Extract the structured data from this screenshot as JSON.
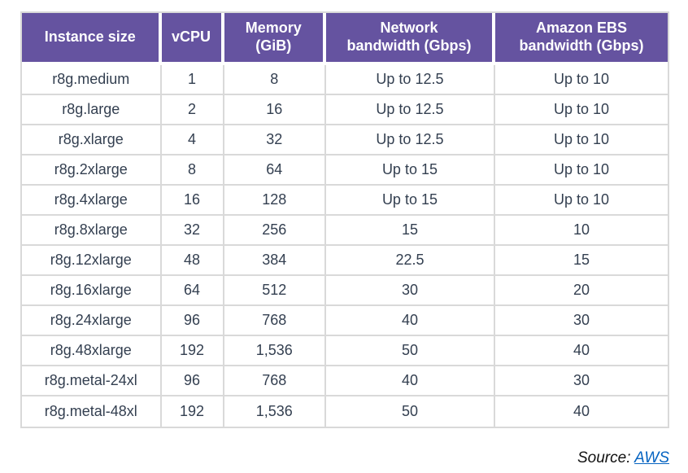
{
  "chart_data": {
    "type": "table",
    "columns": [
      "Instance size",
      "vCPU",
      "Memory (GiB)",
      "Network bandwidth (Gbps)",
      "Amazon EBS bandwidth (Gbps)"
    ],
    "rows": [
      [
        "r8g.medium",
        "1",
        "8",
        "Up to 12.5",
        "Up to 10"
      ],
      [
        "r8g.large",
        "2",
        "16",
        "Up to 12.5",
        "Up to 10"
      ],
      [
        "r8g.xlarge",
        "4",
        "32",
        "Up to 12.5",
        "Up to 10"
      ],
      [
        "r8g.2xlarge",
        "8",
        "64",
        "Up to 15",
        "Up to 10"
      ],
      [
        "r8g.4xlarge",
        "16",
        "128",
        "Up to 15",
        "Up to 10"
      ],
      [
        "r8g.8xlarge",
        "32",
        "256",
        "15",
        "10"
      ],
      [
        "r8g.12xlarge",
        "48",
        "384",
        "22.5",
        "15"
      ],
      [
        "r8g.16xlarge",
        "64",
        "512",
        "30",
        "20"
      ],
      [
        "r8g.24xlarge",
        "96",
        "768",
        "40",
        "30"
      ],
      [
        "r8g.48xlarge",
        "192",
        "1,536",
        "50",
        "40"
      ],
      [
        "r8g.metal-24xl",
        "96",
        "768",
        "40",
        "30"
      ],
      [
        "r8g.metal-48xl",
        "192",
        "1,536",
        "50",
        "40"
      ]
    ]
  },
  "header_lines": [
    [
      "Instance size",
      ""
    ],
    [
      "vCPU",
      ""
    ],
    [
      "Memory",
      "(GiB)"
    ],
    [
      "Network",
      "bandwidth (Gbps)"
    ],
    [
      "Amazon EBS",
      "bandwidth (Gbps)"
    ]
  ],
  "source": {
    "prefix": "Source: ",
    "link_text": "AWS"
  },
  "colors": {
    "header_bg": "#6553A0",
    "header_text": "#FFFFFF",
    "body_text": "#333F50",
    "grid_line": "#D9D9D9",
    "link": "#0563C1"
  }
}
